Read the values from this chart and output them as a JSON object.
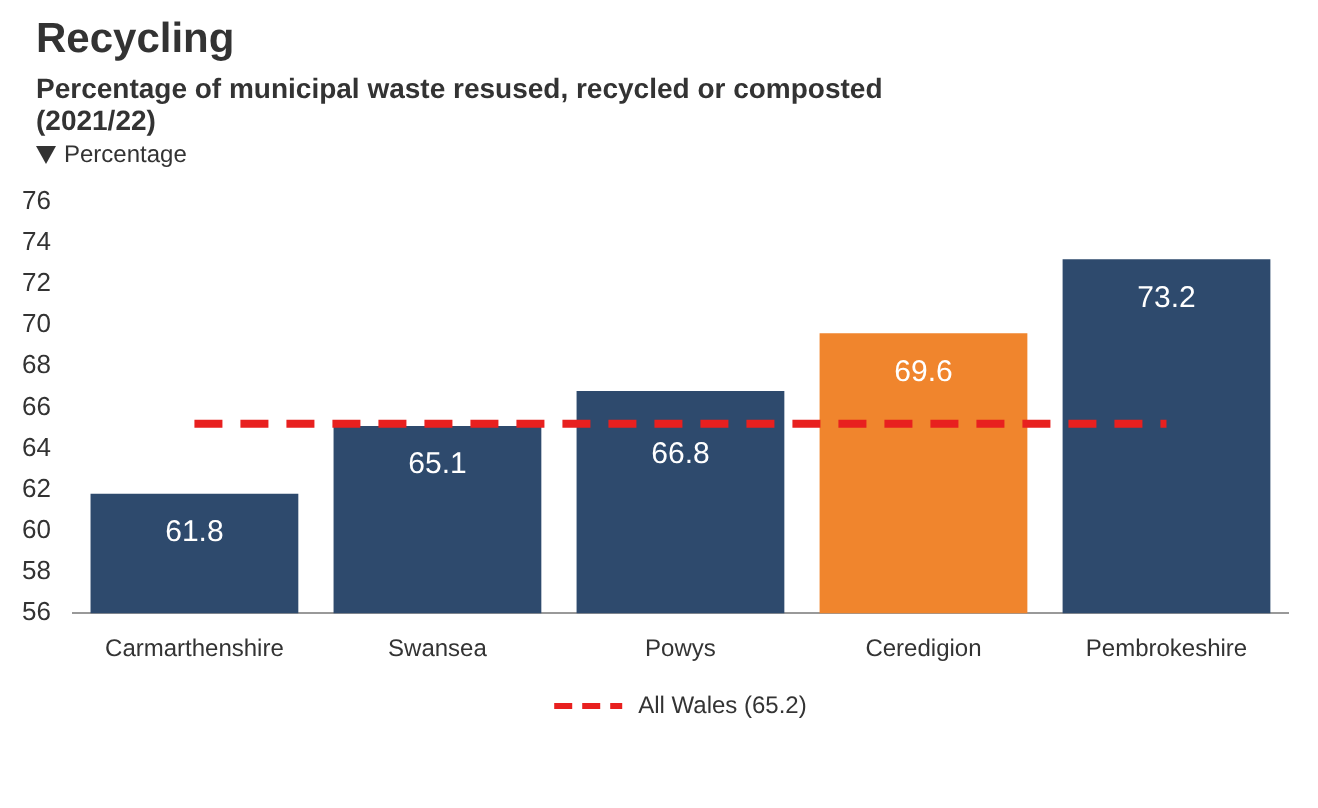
{
  "chart_data": {
    "type": "bar",
    "title": "Recycling",
    "subtitle": "Percentage of municipal waste resused, recycled or composted (2021/22)",
    "ylabel": "Percentage",
    "categories": [
      "Carmarthenshire",
      "Swansea",
      "Powys",
      "Ceredigion",
      "Pembrokeshire"
    ],
    "values": [
      61.8,
      65.1,
      66.8,
      69.6,
      73.2
    ],
    "colors": [
      "#2e4a6d",
      "#2e4a6d",
      "#2e4a6d",
      "#f0852d",
      "#2e4a6d"
    ],
    "ylim": [
      56,
      76
    ],
    "yticks": [
      56,
      58,
      60,
      62,
      64,
      66,
      68,
      70,
      72,
      74,
      76
    ],
    "ref_lines": [
      {
        "axis": "y",
        "value": 65.2,
        "label": "All Wales (65.2)",
        "color": "#e8201f",
        "line_style": "dashed"
      }
    ],
    "data_labels": true,
    "legend": "bottom"
  }
}
